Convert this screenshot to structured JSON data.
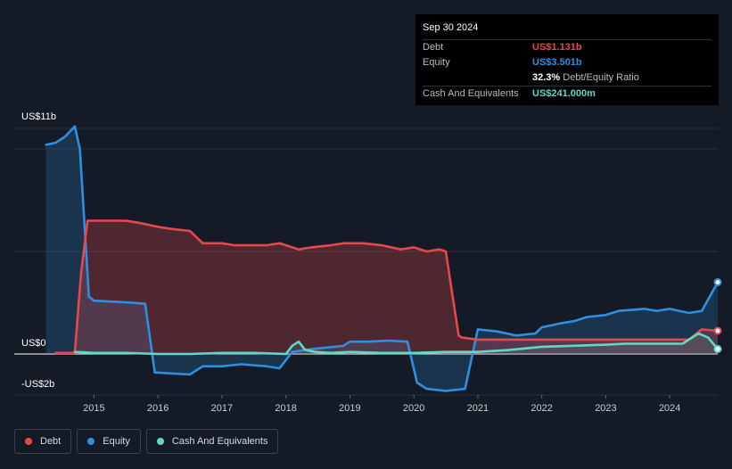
{
  "tooltip": {
    "date": "Sep 30 2024",
    "rows": [
      {
        "label": "Debt",
        "value": "US$1.131b",
        "color": "#e5484d"
      },
      {
        "label": "Equity",
        "value": "US$3.501b",
        "color": "#2d8fe0"
      },
      {
        "label": "",
        "value": "32.3%",
        "suffix": "Debt/Equity Ratio",
        "color": "#ffffff"
      },
      {
        "label": "Cash And Equivalents",
        "value": "US$241.000m",
        "color": "#5fd8c4"
      }
    ]
  },
  "legend": [
    {
      "label": "Debt",
      "color": "#e5484d"
    },
    {
      "label": "Equity",
      "color": "#2d8fe0"
    },
    {
      "label": "Cash And Equivalents",
      "color": "#5fd8c4"
    }
  ],
  "chart_data": {
    "type": "area",
    "y_axis_labels": [
      "US$11b",
      "US$0",
      "-US$2b"
    ],
    "ylim": [
      -2,
      11
    ],
    "xlim": [
      2014.2,
      2024.75
    ],
    "x_ticks": [
      2015,
      2016,
      2017,
      2018,
      2019,
      2020,
      2021,
      2022,
      2023,
      2024
    ],
    "grid": true,
    "series": [
      {
        "name": "Debt",
        "color": "#e5484d",
        "x": [
          2014.4,
          2014.7,
          2014.8,
          2014.9,
          2015.0,
          2015.2,
          2015.5,
          2015.7,
          2016.0,
          2016.2,
          2016.5,
          2016.7,
          2017.0,
          2017.2,
          2017.5,
          2017.7,
          2017.9,
          2018.0,
          2018.2,
          2018.4,
          2018.7,
          2018.9,
          2019.2,
          2019.5,
          2019.8,
          2020.0,
          2020.2,
          2020.4,
          2020.5,
          2020.7,
          2020.75,
          2021.0,
          2021.5,
          2022.0,
          2022.5,
          2023.0,
          2023.5,
          2024.0,
          2024.3,
          2024.5,
          2024.75
        ],
        "values": [
          0.05,
          0.05,
          4.0,
          6.5,
          6.5,
          6.5,
          6.5,
          6.4,
          6.2,
          6.1,
          6.0,
          5.4,
          5.4,
          5.3,
          5.3,
          5.3,
          5.4,
          5.3,
          5.1,
          5.2,
          5.3,
          5.4,
          5.4,
          5.3,
          5.1,
          5.2,
          5.0,
          5.1,
          5.0,
          0.9,
          0.8,
          0.7,
          0.7,
          0.7,
          0.7,
          0.7,
          0.7,
          0.7,
          0.7,
          1.2,
          1.131
        ]
      },
      {
        "name": "Equity",
        "color": "#2d8fe0",
        "x": [
          2014.25,
          2014.4,
          2014.55,
          2014.7,
          2014.78,
          2014.92,
          2015.0,
          2015.3,
          2015.6,
          2015.8,
          2015.95,
          2016.2,
          2016.5,
          2016.7,
          2017.0,
          2017.3,
          2017.7,
          2017.9,
          2018.1,
          2018.3,
          2018.6,
          2018.9,
          2019.0,
          2019.3,
          2019.6,
          2019.9,
          2020.05,
          2020.2,
          2020.5,
          2020.8,
          2021.0,
          2021.3,
          2021.6,
          2021.9,
          2022.0,
          2022.3,
          2022.5,
          2022.7,
          2023.0,
          2023.2,
          2023.6,
          2023.8,
          2024.0,
          2024.3,
          2024.5,
          2024.75
        ],
        "values": [
          10.2,
          10.3,
          10.6,
          11.1,
          10.0,
          2.8,
          2.6,
          2.55,
          2.5,
          2.45,
          -0.9,
          -0.95,
          -1.0,
          -0.6,
          -0.6,
          -0.5,
          -0.6,
          -0.7,
          0.1,
          0.2,
          0.3,
          0.4,
          0.6,
          0.6,
          0.65,
          0.6,
          -1.4,
          -1.7,
          -1.8,
          -1.7,
          1.2,
          1.1,
          0.9,
          1.0,
          1.3,
          1.5,
          1.6,
          1.8,
          1.9,
          2.1,
          2.2,
          2.1,
          2.2,
          2.0,
          2.1,
          3.501
        ]
      },
      {
        "name": "Cash And Equivalents",
        "color": "#5fd8c4",
        "x": [
          2014.7,
          2015.0,
          2015.5,
          2016.0,
          2016.5,
          2017.0,
          2017.5,
          2018.0,
          2018.1,
          2018.2,
          2018.3,
          2018.45,
          2018.7,
          2019.0,
          2019.5,
          2020.0,
          2020.5,
          2021.0,
          2021.5,
          2022.0,
          2022.5,
          2023.0,
          2023.3,
          2023.6,
          2024.0,
          2024.2,
          2024.45,
          2024.6,
          2024.75
        ],
        "values": [
          0.1,
          0.05,
          0.05,
          0.0,
          0.0,
          0.05,
          0.05,
          0.0,
          0.4,
          0.6,
          0.2,
          0.1,
          0.05,
          0.1,
          0.05,
          0.05,
          0.1,
          0.1,
          0.2,
          0.35,
          0.4,
          0.45,
          0.5,
          0.5,
          0.5,
          0.5,
          1.0,
          0.8,
          0.241
        ]
      }
    ]
  }
}
